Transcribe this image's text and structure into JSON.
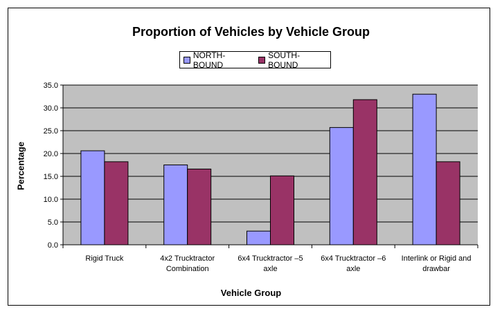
{
  "chart_data": {
    "type": "bar",
    "title": "Proportion of Vehicles by Vehicle Group",
    "xlabel": "Vehicle Group",
    "ylabel": "Percentage",
    "categories": [
      [
        "Rigid Truck"
      ],
      [
        "4x2 Trucktractor",
        "Combination"
      ],
      [
        "6x4 Trucktractor –5",
        "axle"
      ],
      [
        "6x4 Trucktractor –6",
        "axle"
      ],
      [
        "Interlink or Rigid and",
        "drawbar"
      ]
    ],
    "series": [
      {
        "name": "NORTH-BOUND",
        "color": "#9999ff",
        "values": [
          20.6,
          17.5,
          3.0,
          25.7,
          33.0
        ]
      },
      {
        "name": "SOUTH-BOUND",
        "color": "#993366",
        "values": [
          18.2,
          16.6,
          15.1,
          31.8,
          18.2
        ]
      }
    ],
    "ylim": [
      0,
      35
    ],
    "yticks": [
      "0.0",
      "5.0",
      "10.0",
      "15.0",
      "20.0",
      "25.0",
      "30.0",
      "35.0"
    ],
    "grid": true,
    "plot_background": "#c0c0c0",
    "legend_position": "top-center"
  }
}
